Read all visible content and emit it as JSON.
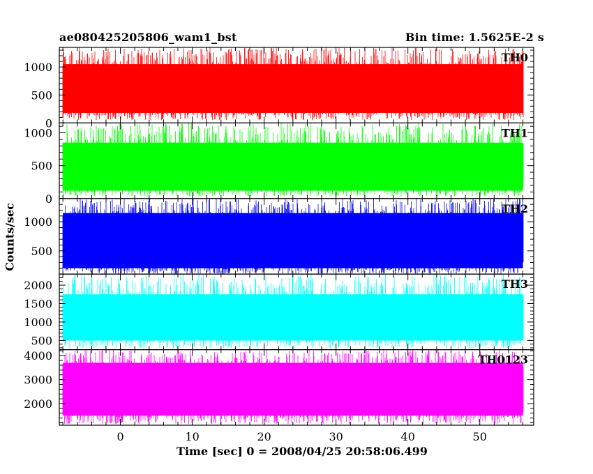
{
  "header": {
    "title": "ae080425205806_wam1_bst",
    "bin_time": "Bin time: 1.5625E-2 s"
  },
  "chart_data": {
    "type": "line",
    "xlabel": "Time [sec] 0 = 2008/04/25 20:58:06.499",
    "ylabel": "Counts/sec",
    "xlim": [
      -8.5,
      57.5
    ],
    "x_data_range": [
      -8,
      56
    ],
    "xticks": [
      0,
      10,
      20,
      30,
      40,
      50
    ],
    "panels": [
      {
        "name": "TH0",
        "color": "#ff0000",
        "ylim": [
          0,
          1350
        ],
        "yticks": [
          0,
          500,
          1000
        ],
        "band_low": 180,
        "band_high": 1050,
        "min": 50,
        "max": 1350
      },
      {
        "name": "TH1",
        "color": "#00ff00",
        "ylim": [
          0,
          1150
        ],
        "yticks": [
          0,
          500,
          1000
        ],
        "band_low": 120,
        "band_high": 850,
        "min": 30,
        "max": 1150
      },
      {
        "name": "TH2",
        "color": "#0000ff",
        "ylim": [
          100,
          1400
        ],
        "yticks": [
          500,
          1000
        ],
        "band_low": 200,
        "band_high": 1150,
        "min": 100,
        "max": 1400
      },
      {
        "name": "TH3",
        "color": "#00ffff",
        "ylim": [
          250,
          2300
        ],
        "yticks": [
          500,
          1000,
          1500,
          2000
        ],
        "band_low": 500,
        "band_high": 1750,
        "min": 280,
        "max": 2300
      },
      {
        "name": "TH0123",
        "color": "#ff00ff",
        "ylim": [
          1100,
          4250
        ],
        "yticks": [
          2000,
          3000,
          4000
        ],
        "band_low": 1500,
        "band_high": 3700,
        "min": 1150,
        "max": 4250
      }
    ]
  }
}
